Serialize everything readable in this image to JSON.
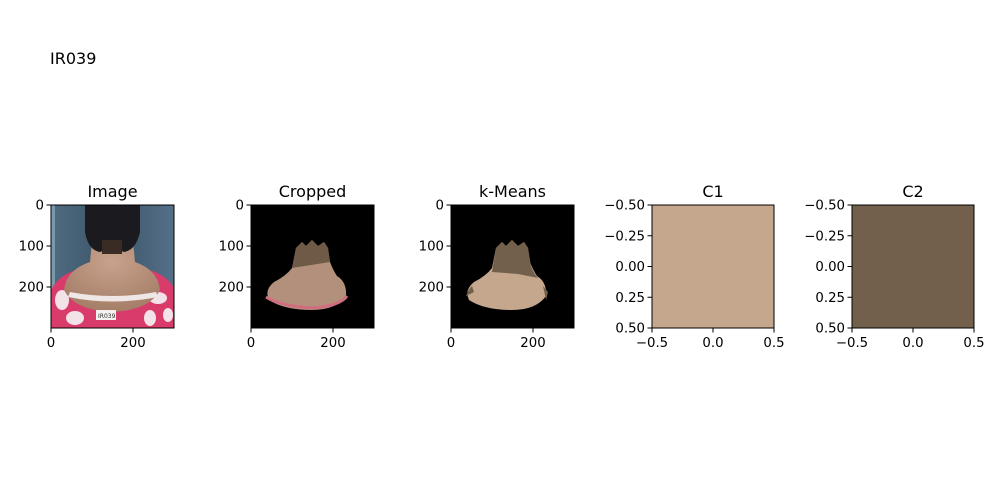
{
  "figure": {
    "suptitle": "IR039"
  },
  "colors": {
    "c1_swatch": "#c4a78c",
    "c2_swatch": "#72604c",
    "background_black": "#000000",
    "photo_wall": "#3d5a70",
    "shirt_pink": "#d93c6a",
    "skin": "#b58d78",
    "hair": "#1b1a1f"
  },
  "chart_data": [
    {
      "type": "image",
      "title": "Image",
      "content": "photo",
      "xlim": [
        0,
        300
      ],
      "ylim": [
        300,
        0
      ],
      "x_ticks": [
        0,
        200
      ],
      "x_tick_labels": [
        "0",
        "200"
      ],
      "y_ticks": [
        0,
        100,
        200
      ],
      "y_tick_labels": [
        "0",
        "100",
        "200"
      ]
    },
    {
      "type": "image",
      "title": "Cropped",
      "content": "segmented-photo",
      "xlim": [
        0,
        300
      ],
      "ylim": [
        300,
        0
      ],
      "x_ticks": [
        0,
        200
      ],
      "x_tick_labels": [
        "0",
        "200"
      ],
      "y_ticks": [
        0,
        100,
        200
      ],
      "y_tick_labels": [
        "0",
        "100",
        "200"
      ]
    },
    {
      "type": "image",
      "title": "k-Means",
      "content": "clustered-photo",
      "xlim": [
        0,
        300
      ],
      "ylim": [
        300,
        0
      ],
      "x_ticks": [
        0,
        200
      ],
      "x_tick_labels": [
        "0",
        "200"
      ],
      "y_ticks": [
        0,
        100,
        200
      ],
      "y_tick_labels": [
        "0",
        "100",
        "200"
      ]
    },
    {
      "type": "image",
      "title": "C1",
      "content": "swatch",
      "swatch_color": "#c4a78c",
      "xlim": [
        -0.5,
        0.5
      ],
      "ylim": [
        0.5,
        -0.5
      ],
      "x_ticks": [
        -0.5,
        0.0,
        0.5
      ],
      "x_tick_labels": [
        "−0.5",
        "0.0",
        "0.5"
      ],
      "y_ticks": [
        -0.5,
        -0.25,
        0.0,
        0.25,
        0.5
      ],
      "y_tick_labels": [
        "−0.50",
        "−0.25",
        "0.00",
        "0.25",
        "0.50"
      ]
    },
    {
      "type": "image",
      "title": "C2",
      "content": "swatch",
      "swatch_color": "#72604c",
      "xlim": [
        -0.5,
        0.5
      ],
      "ylim": [
        0.5,
        -0.5
      ],
      "x_ticks": [
        -0.5,
        0.0,
        0.5
      ],
      "x_tick_labels": [
        "−0.5",
        "0.0",
        "0.5"
      ],
      "y_ticks": [
        -0.5,
        -0.25,
        0.0,
        0.25,
        0.5
      ],
      "y_tick_labels": [
        "−0.50",
        "−0.25",
        "0.00",
        "0.25",
        "0.50"
      ]
    }
  ]
}
